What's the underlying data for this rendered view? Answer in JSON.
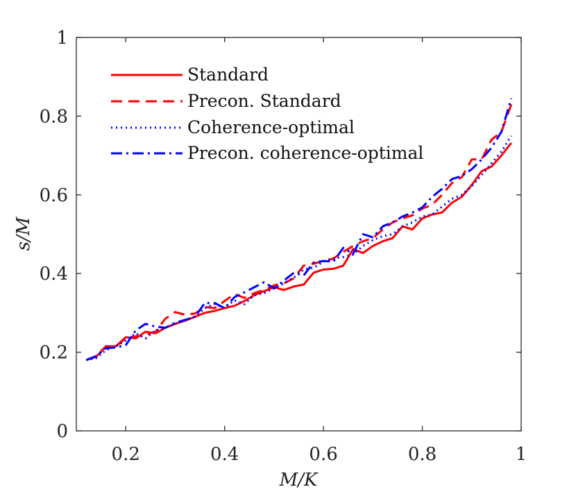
{
  "chart_data": {
    "type": "line",
    "title": "",
    "xlabel": "M/K",
    "ylabel": "s/M",
    "xlim": [
      0.1,
      1.0
    ],
    "ylim": [
      0,
      1
    ],
    "xticks": [
      0.2,
      0.4,
      0.6,
      0.8,
      1.0
    ],
    "xtick_labels": [
      "0.2",
      "0.4",
      "0.6",
      "0.8",
      "1"
    ],
    "yticks": [
      0,
      0.2,
      0.4,
      0.6,
      0.8,
      1.0
    ],
    "ytick_labels": [
      "0",
      "0.2",
      "0.4",
      "0.6",
      "0.8",
      "1"
    ],
    "grid": false,
    "legend_position": "top-left",
    "series": [
      {
        "name": "Standard",
        "color": "#ff0000",
        "style": "solid",
        "x": [
          0.12,
          0.14,
          0.16,
          0.18,
          0.2,
          0.22,
          0.24,
          0.26,
          0.28,
          0.3,
          0.32,
          0.34,
          0.36,
          0.38,
          0.4,
          0.42,
          0.44,
          0.46,
          0.48,
          0.5,
          0.52,
          0.54,
          0.56,
          0.58,
          0.6,
          0.62,
          0.64,
          0.66,
          0.68,
          0.7,
          0.72,
          0.74,
          0.76,
          0.78,
          0.8,
          0.82,
          0.84,
          0.86,
          0.88,
          0.9,
          0.92,
          0.94,
          0.96,
          0.98
        ],
        "y": [
          0.18,
          0.188,
          0.215,
          0.215,
          0.238,
          0.235,
          0.252,
          0.248,
          0.262,
          0.272,
          0.28,
          0.29,
          0.3,
          0.305,
          0.312,
          0.318,
          0.33,
          0.345,
          0.355,
          0.365,
          0.358,
          0.367,
          0.372,
          0.402,
          0.41,
          0.412,
          0.42,
          0.462,
          0.452,
          0.47,
          0.482,
          0.49,
          0.52,
          0.512,
          0.54,
          0.55,
          0.555,
          0.58,
          0.595,
          0.625,
          0.66,
          0.672,
          0.7,
          0.732
        ]
      },
      {
        "name": "Precon. Standard",
        "color": "#ff0000",
        "style": "dashed",
        "x": [
          0.12,
          0.14,
          0.16,
          0.18,
          0.2,
          0.22,
          0.24,
          0.26,
          0.28,
          0.3,
          0.32,
          0.34,
          0.36,
          0.38,
          0.4,
          0.42,
          0.44,
          0.46,
          0.48,
          0.5,
          0.52,
          0.54,
          0.56,
          0.58,
          0.6,
          0.62,
          0.64,
          0.66,
          0.68,
          0.7,
          0.72,
          0.74,
          0.76,
          0.78,
          0.8,
          0.82,
          0.84,
          0.86,
          0.88,
          0.9,
          0.92,
          0.94,
          0.96,
          0.98
        ],
        "y": [
          0.18,
          0.19,
          0.215,
          0.215,
          0.235,
          0.24,
          0.245,
          0.252,
          0.285,
          0.302,
          0.295,
          0.298,
          0.315,
          0.312,
          0.33,
          0.348,
          0.338,
          0.35,
          0.358,
          0.37,
          0.375,
          0.388,
          0.42,
          0.425,
          0.432,
          0.438,
          0.455,
          0.47,
          0.482,
          0.49,
          0.512,
          0.53,
          0.54,
          0.548,
          0.565,
          0.575,
          0.6,
          0.63,
          0.645,
          0.69,
          0.69,
          0.74,
          0.76,
          0.83
        ]
      },
      {
        "name": "Coherence-optimal",
        "color": "#0000ff",
        "style": "dotted",
        "x": [
          0.12,
          0.14,
          0.16,
          0.18,
          0.2,
          0.22,
          0.24,
          0.26,
          0.28,
          0.3,
          0.32,
          0.34,
          0.36,
          0.38,
          0.4,
          0.42,
          0.44,
          0.46,
          0.48,
          0.5,
          0.52,
          0.54,
          0.56,
          0.58,
          0.6,
          0.62,
          0.64,
          0.66,
          0.68,
          0.7,
          0.72,
          0.74,
          0.76,
          0.78,
          0.8,
          0.82,
          0.84,
          0.86,
          0.88,
          0.9,
          0.92,
          0.94,
          0.96,
          0.98
        ],
        "y": [
          0.18,
          0.185,
          0.205,
          0.215,
          0.23,
          0.248,
          0.235,
          0.255,
          0.262,
          0.272,
          0.282,
          0.29,
          0.312,
          0.322,
          0.312,
          0.332,
          0.322,
          0.345,
          0.35,
          0.362,
          0.375,
          0.39,
          0.41,
          0.415,
          0.43,
          0.438,
          0.442,
          0.448,
          0.47,
          0.485,
          0.495,
          0.5,
          0.52,
          0.53,
          0.545,
          0.55,
          0.57,
          0.59,
          0.6,
          0.622,
          0.65,
          0.68,
          0.71,
          0.75
        ]
      },
      {
        "name": "Precon. coherence-optimal",
        "color": "#0000ff",
        "style": "dashdot",
        "x": [
          0.12,
          0.14,
          0.16,
          0.18,
          0.2,
          0.22,
          0.24,
          0.26,
          0.28,
          0.3,
          0.32,
          0.34,
          0.36,
          0.38,
          0.4,
          0.42,
          0.44,
          0.46,
          0.48,
          0.5,
          0.52,
          0.54,
          0.56,
          0.58,
          0.6,
          0.62,
          0.64,
          0.66,
          0.68,
          0.7,
          0.72,
          0.74,
          0.76,
          0.78,
          0.8,
          0.82,
          0.84,
          0.86,
          0.88,
          0.9,
          0.92,
          0.94,
          0.96,
          0.98
        ],
        "y": [
          0.18,
          0.19,
          0.21,
          0.212,
          0.218,
          0.255,
          0.272,
          0.265,
          0.262,
          0.275,
          0.282,
          0.29,
          0.325,
          0.325,
          0.312,
          0.34,
          0.352,
          0.365,
          0.378,
          0.362,
          0.382,
          0.402,
          0.395,
          0.428,
          0.432,
          0.43,
          0.465,
          0.45,
          0.5,
          0.492,
          0.52,
          0.53,
          0.545,
          0.555,
          0.568,
          0.595,
          0.615,
          0.64,
          0.648,
          0.665,
          0.69,
          0.72,
          0.76,
          0.845
        ]
      }
    ]
  }
}
